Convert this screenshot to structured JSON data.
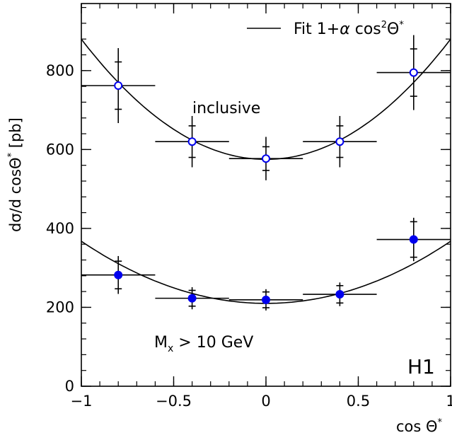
{
  "chart_data": {
    "type": "scatter",
    "title": "",
    "xlabel": "cos Θ*",
    "ylabel": "dσ/d cosΘ* [pb]",
    "xlim": [
      -1,
      1
    ],
    "ylim": [
      0,
      970
    ],
    "x_ticks": [
      -1,
      -0.5,
      0,
      0.5,
      1
    ],
    "x_tick_labels": [
      "−1",
      "−0.5",
      "0",
      "0.5",
      "1"
    ],
    "y_ticks": [
      0,
      200,
      400,
      600,
      800
    ],
    "y_tick_labels": [
      "0",
      "200",
      "400",
      "600",
      "800"
    ],
    "legend": {
      "position": "top-right",
      "entries": [
        "Fit 1+α cos²Θ*"
      ]
    },
    "grid": false,
    "series": [
      {
        "name": "inclusive",
        "marker": "open-circle",
        "color": "#0000ee",
        "x": [
          -0.8,
          -0.4,
          0.0,
          0.4,
          0.8
        ],
        "y": [
          762,
          620,
          577,
          620,
          795
        ],
        "xerr": [
          0.2,
          0.2,
          0.2,
          0.2,
          0.2
        ],
        "yerr_stat": [
          60,
          40,
          30,
          40,
          60
        ],
        "yerr_total": [
          95,
          65,
          55,
          65,
          95
        ],
        "fit": {
          "a": 575,
          "alpha": 0.53
        }
      },
      {
        "name": "M_X > 10 GeV",
        "marker": "filled-circle",
        "color": "#0000ee",
        "x": [
          -0.8,
          -0.4,
          0.0,
          0.4,
          0.8
        ],
        "y": [
          282,
          223,
          219,
          233,
          372
        ],
        "xerr": [
          0.2,
          0.2,
          0.2,
          0.2,
          0.2
        ],
        "yerr_stat": [
          35,
          20,
          20,
          22,
          45
        ],
        "yerr_total": [
          48,
          28,
          27,
          30,
          55
        ],
        "fit": {
          "a": 210,
          "alpha": 0.75
        }
      }
    ],
    "annotations": [
      "inclusive",
      "M",
      "x",
      "> 10 GeV",
      "H1"
    ],
    "legend_label_parts": {
      "fit": "Fit 1+",
      "alpha": "α",
      "cos": "cos",
      "sq": "2",
      "theta": "Θ",
      "star": "*"
    },
    "xlabel_parts": {
      "main": "cos Θ",
      "star": "*"
    },
    "ylabel_parts": {
      "a": "dσ/d cosΘ",
      "star": "*",
      "b": "[pb]"
    }
  }
}
